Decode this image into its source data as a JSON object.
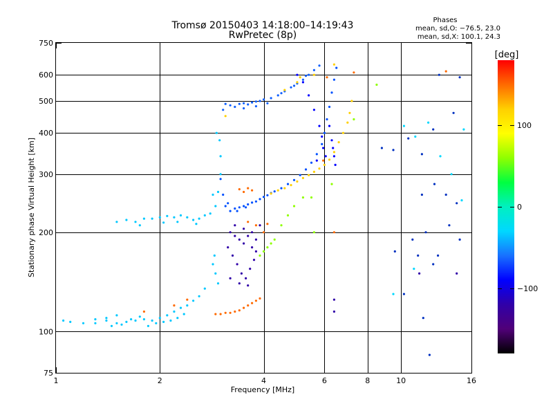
{
  "chart_data": {
    "type": "scatter",
    "title": "Tromsø 20150403 14:18:00–14:19:43",
    "subtitle": "RwPretec (8p)",
    "xlabel": "Frequency [MHz]",
    "ylabel": "Stationary phase Virtual Height [km]",
    "x_scale": "log",
    "y_scale": "log",
    "xlim": [
      1,
      16
    ],
    "ylim": [
      75,
      750
    ],
    "x_ticks": [
      1,
      2,
      4,
      6,
      8,
      10,
      16
    ],
    "x_tick_labels": [
      "1",
      "2",
      "4",
      "6",
      "8",
      "10",
      "16"
    ],
    "y_ticks": [
      75,
      100,
      200,
      300,
      400,
      500,
      600,
      750
    ],
    "y_tick_labels": [
      "75",
      "100",
      "200",
      "300",
      "400",
      "500",
      "600",
      "750"
    ],
    "x_gridlines": [
      2,
      4,
      6,
      8,
      10
    ],
    "y_gridlines": [
      100,
      200,
      300,
      400,
      500,
      600
    ],
    "grid": true,
    "phase_stats": {
      "title": "Phases",
      "line_o": "mean, sd,O: −76.5, 23.0",
      "line_x": "mean, sd,X: 100.1, 24.3"
    },
    "colorbar": {
      "label": "[deg]",
      "range": [
        -180,
        180
      ],
      "ticks": [
        100,
        0,
        -100
      ],
      "tick_labels": [
        "100",
        "0",
        "−100"
      ],
      "colors": [
        "#ff0000",
        "#ff6a00",
        "#ffd000",
        "#ffff00",
        "#90ff00",
        "#00ff40",
        "#00f0c0",
        "#00d8ff",
        "#1870ff",
        "#0000ff",
        "#3000a8",
        "#500078",
        "#000000"
      ]
    },
    "series": [
      {
        "color": "#00c8ff",
        "points": [
          [
            1.05,
            108
          ],
          [
            1.1,
            107
          ],
          [
            1.2,
            106
          ],
          [
            1.3,
            106
          ],
          [
            1.4,
            108
          ],
          [
            1.5,
            106
          ],
          [
            1.6,
            107
          ],
          [
            1.7,
            108
          ],
          [
            1.8,
            109
          ],
          [
            1.9,
            108
          ],
          [
            2.0,
            110
          ],
          [
            2.1,
            112
          ],
          [
            2.2,
            115
          ],
          [
            2.3,
            118
          ],
          [
            2.4,
            120
          ],
          [
            2.5,
            124
          ],
          [
            2.6,
            128
          ],
          [
            2.7,
            135
          ],
          [
            1.4,
            110
          ],
          [
            1.5,
            112
          ],
          [
            1.65,
            109
          ],
          [
            1.75,
            111
          ],
          [
            1.85,
            104
          ],
          [
            1.95,
            106
          ],
          [
            2.05,
            107
          ],
          [
            1.3,
            109
          ],
          [
            1.45,
            104
          ],
          [
            1.55,
            105
          ],
          [
            2.15,
            108
          ],
          [
            2.25,
            110
          ],
          [
            2.35,
            113
          ]
        ]
      },
      {
        "color": "#00c8ff",
        "points": [
          [
            1.5,
            215
          ],
          [
            1.6,
            218
          ],
          [
            1.7,
            215
          ],
          [
            1.8,
            220
          ],
          [
            1.9,
            220
          ],
          [
            2.0,
            222
          ],
          [
            2.1,
            224
          ],
          [
            2.2,
            222
          ],
          [
            2.3,
            225
          ],
          [
            2.4,
            222
          ],
          [
            2.5,
            218
          ],
          [
            2.6,
            220
          ],
          [
            2.7,
            225
          ],
          [
            2.8,
            228
          ],
          [
            1.75,
            210
          ],
          [
            2.05,
            214
          ],
          [
            2.25,
            215
          ],
          [
            2.55,
            212
          ],
          [
            2.9,
            240
          ],
          [
            2.95,
            265
          ],
          [
            3.0,
            300
          ],
          [
            3.0,
            340
          ],
          [
            2.98,
            380
          ],
          [
            2.92,
            400
          ],
          [
            2.85,
            260
          ],
          [
            2.88,
            170
          ],
          [
            2.85,
            160
          ],
          [
            2.9,
            150
          ],
          [
            2.95,
            140
          ]
        ]
      },
      {
        "color": "#0050ff",
        "points": [
          [
            3.0,
            290
          ],
          [
            3.05,
            260
          ],
          [
            3.1,
            240
          ],
          [
            3.2,
            232
          ],
          [
            3.3,
            236
          ],
          [
            3.4,
            238
          ],
          [
            3.5,
            240
          ],
          [
            3.6,
            243
          ],
          [
            3.7,
            246
          ],
          [
            3.8,
            248
          ],
          [
            3.9,
            252
          ],
          [
            4.0,
            256
          ],
          [
            4.1,
            259
          ],
          [
            4.2,
            263
          ],
          [
            4.3,
            266
          ],
          [
            4.5,
            272
          ],
          [
            4.7,
            280
          ],
          [
            4.9,
            288
          ],
          [
            5.1,
            298
          ],
          [
            5.3,
            310
          ],
          [
            5.5,
            325
          ],
          [
            5.7,
            345
          ],
          [
            5.9,
            370
          ],
          [
            6.0,
            400
          ],
          [
            6.1,
            440
          ],
          [
            6.2,
            480
          ],
          [
            6.3,
            530
          ],
          [
            6.4,
            580
          ],
          [
            6.5,
            630
          ],
          [
            3.15,
            245
          ],
          [
            3.35,
            232
          ],
          [
            3.55,
            238
          ]
        ]
      },
      {
        "color": "#1060ff",
        "points": [
          [
            3.1,
            490
          ],
          [
            3.2,
            485
          ],
          [
            3.3,
            480
          ],
          [
            3.4,
            490
          ],
          [
            3.5,
            492
          ],
          [
            3.6,
            488
          ],
          [
            3.7,
            495
          ],
          [
            3.8,
            498
          ],
          [
            3.9,
            500
          ],
          [
            4.0,
            505
          ],
          [
            4.2,
            510
          ],
          [
            4.4,
            520
          ],
          [
            4.6,
            535
          ],
          [
            4.8,
            550
          ],
          [
            5.0,
            565
          ],
          [
            5.2,
            580
          ],
          [
            5.4,
            600
          ],
          [
            5.6,
            620
          ],
          [
            5.8,
            640
          ],
          [
            3.05,
            470
          ],
          [
            3.5,
            475
          ],
          [
            3.8,
            482
          ],
          [
            4.1,
            492
          ],
          [
            4.5,
            528
          ],
          [
            4.9,
            556
          ],
          [
            5.3,
            596
          ]
        ]
      },
      {
        "color": "#ffd000",
        "points": [
          [
            4.2,
            262
          ],
          [
            4.4,
            268
          ],
          [
            4.6,
            272
          ],
          [
            4.8,
            278
          ],
          [
            5.0,
            285
          ],
          [
            5.2,
            292
          ],
          [
            5.4,
            298
          ],
          [
            5.6,
            305
          ],
          [
            5.8,
            312
          ],
          [
            6.0,
            320
          ],
          [
            6.2,
            332
          ],
          [
            6.4,
            350
          ],
          [
            6.6,
            375
          ],
          [
            6.8,
            400
          ],
          [
            7.0,
            430
          ],
          [
            7.1,
            460
          ],
          [
            7.2,
            500
          ],
          [
            3.1,
            450
          ],
          [
            4.6,
            540
          ],
          [
            5.0,
            570
          ],
          [
            5.6,
            600
          ],
          [
            6.4,
            645
          ],
          [
            5.1,
            590
          ]
        ]
      },
      {
        "color": "#0000ff",
        "points": [
          [
            5.0,
            600
          ],
          [
            5.2,
            570
          ],
          [
            5.4,
            520
          ],
          [
            5.6,
            470
          ],
          [
            5.8,
            420
          ],
          [
            5.9,
            390
          ],
          [
            6.2,
            420
          ],
          [
            6.3,
            380
          ],
          [
            6.35,
            360
          ],
          [
            6.4,
            340
          ],
          [
            6.45,
            320
          ],
          [
            5.95,
            360
          ],
          [
            6.05,
            340
          ],
          [
            5.7,
            330
          ]
        ]
      },
      {
        "color": "#ff6a00",
        "points": [
          [
            2.9,
            113
          ],
          [
            3.0,
            113
          ],
          [
            3.1,
            114
          ],
          [
            3.2,
            114
          ],
          [
            3.3,
            115
          ],
          [
            3.4,
            116
          ],
          [
            3.5,
            118
          ],
          [
            3.6,
            120
          ],
          [
            3.7,
            122
          ],
          [
            3.8,
            124
          ],
          [
            3.9,
            126
          ],
          [
            3.4,
            270
          ],
          [
            3.5,
            265
          ],
          [
            3.6,
            272
          ],
          [
            3.7,
            268
          ],
          [
            1.8,
            115
          ],
          [
            2.2,
            120
          ],
          [
            2.4,
            125
          ],
          [
            3.6,
            215
          ],
          [
            3.8,
            210
          ],
          [
            4.0,
            200
          ],
          [
            4.1,
            212
          ],
          [
            6.1,
            590
          ],
          [
            7.3,
            610
          ],
          [
            13.5,
            615
          ],
          [
            6.4,
            200
          ],
          [
            5.95,
            330
          ]
        ]
      },
      {
        "color": "#3000a8",
        "points": [
          [
            3.2,
            200
          ],
          [
            3.3,
            195
          ],
          [
            3.4,
            190
          ],
          [
            3.5,
            185
          ],
          [
            3.6,
            195
          ],
          [
            3.7,
            180
          ],
          [
            3.8,
            175
          ],
          [
            3.25,
            170
          ],
          [
            3.35,
            160
          ],
          [
            3.45,
            150
          ],
          [
            3.55,
            145
          ],
          [
            3.65,
            155
          ],
          [
            3.75,
            165
          ],
          [
            3.15,
            180
          ],
          [
            3.3,
            210
          ],
          [
            3.5,
            205
          ],
          [
            3.7,
            200
          ],
          [
            3.2,
            145
          ],
          [
            3.4,
            140
          ],
          [
            3.6,
            138
          ],
          [
            3.8,
            190
          ],
          [
            3.9,
            210
          ],
          [
            6.4,
            125
          ],
          [
            6.4,
            115
          ],
          [
            11.3,
            150
          ],
          [
            14.5,
            150
          ]
        ]
      },
      {
        "color": "#90ff00",
        "points": [
          [
            3.9,
            170
          ],
          [
            4.0,
            175
          ],
          [
            4.1,
            180
          ],
          [
            4.2,
            185
          ],
          [
            4.3,
            190
          ],
          [
            4.5,
            210
          ],
          [
            4.7,
            225
          ],
          [
            4.9,
            240
          ],
          [
            5.2,
            255
          ],
          [
            5.5,
            255
          ],
          [
            5.6,
            200
          ],
          [
            6.3,
            280
          ],
          [
            7.3,
            440
          ],
          [
            8.5,
            560
          ]
        ]
      },
      {
        "color": "#0030c0",
        "points": [
          [
            8.8,
            360
          ],
          [
            9.5,
            355
          ],
          [
            10.5,
            385
          ],
          [
            11.5,
            260
          ],
          [
            12.5,
            280
          ],
          [
            13.5,
            260
          ],
          [
            14.5,
            245
          ],
          [
            10.8,
            190
          ],
          [
            11.8,
            200
          ],
          [
            12.8,
            170
          ],
          [
            13.8,
            210
          ],
          [
            14.8,
            190
          ],
          [
            11.2,
            170
          ],
          [
            12.4,
            160
          ],
          [
            10.2,
            130
          ],
          [
            11.6,
            110
          ],
          [
            12.9,
            600
          ],
          [
            14.8,
            590
          ],
          [
            14.2,
            460
          ],
          [
            12.4,
            410
          ],
          [
            9.6,
            175
          ],
          [
            11.5,
            345
          ],
          [
            12.1,
            85
          ]
        ]
      },
      {
        "color": "#00d8ff",
        "points": [
          [
            10.2,
            420
          ],
          [
            11.0,
            390
          ],
          [
            12.0,
            430
          ],
          [
            13.0,
            340
          ],
          [
            14.0,
            300
          ],
          [
            15.0,
            250
          ],
          [
            9.5,
            130
          ],
          [
            10.9,
            155
          ],
          [
            15.2,
            410
          ]
        ]
      }
    ]
  }
}
